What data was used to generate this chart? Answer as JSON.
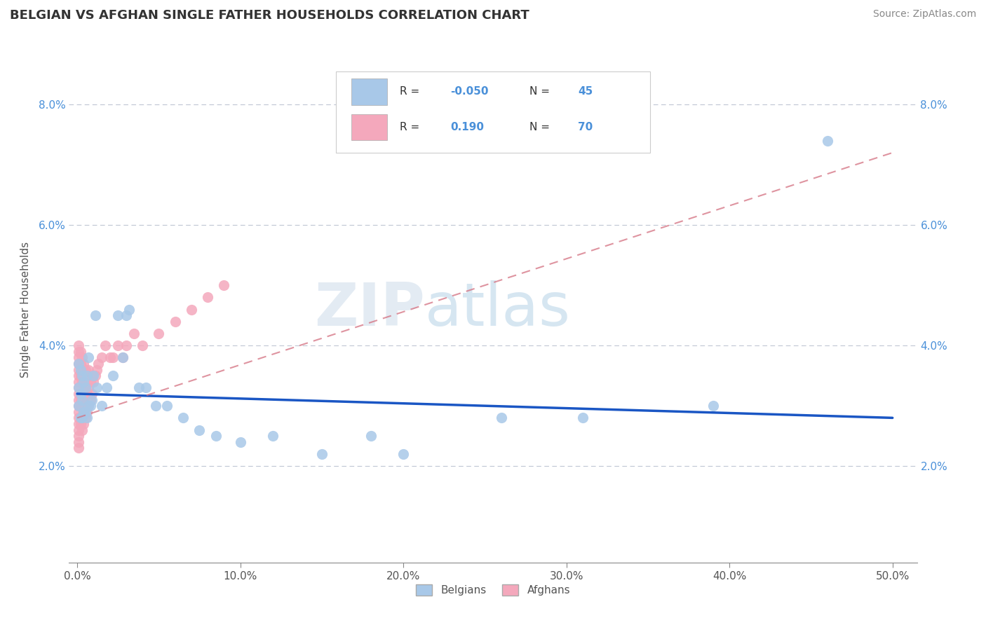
{
  "title": "BELGIAN VS AFGHAN SINGLE FATHER HOUSEHOLDS CORRELATION CHART",
  "source": "Source: ZipAtlas.com",
  "ylabel": "Single Father Households",
  "x_tick_positions": [
    0.0,
    0.1,
    0.2,
    0.3,
    0.4,
    0.5
  ],
  "y_tick_positions": [
    0.02,
    0.04,
    0.06,
    0.08
  ],
  "x_lim": [
    -0.005,
    0.515
  ],
  "y_lim": [
    0.004,
    0.088
  ],
  "belgian_color": "#a8c8e8",
  "afghan_color": "#f4a8bc",
  "belgian_line_color": "#1a56c4",
  "afghan_line_color": "#d47080",
  "belgian_r": -0.05,
  "belgian_n": 45,
  "afghan_r": 0.19,
  "afghan_n": 70,
  "watermark_zip": "ZIP",
  "watermark_atlas": "atlas",
  "legend_belgians": "Belgians",
  "legend_afghans": "Afghans",
  "belgian_scatter_x": [
    0.001,
    0.001,
    0.001,
    0.002,
    0.002,
    0.002,
    0.003,
    0.003,
    0.003,
    0.004,
    0.004,
    0.005,
    0.005,
    0.006,
    0.006,
    0.007,
    0.007,
    0.008,
    0.009,
    0.01,
    0.011,
    0.012,
    0.015,
    0.018,
    0.022,
    0.025,
    0.028,
    0.03,
    0.032,
    0.038,
    0.042,
    0.048,
    0.055,
    0.065,
    0.075,
    0.085,
    0.1,
    0.12,
    0.15,
    0.18,
    0.2,
    0.26,
    0.31,
    0.39,
    0.46
  ],
  "belgian_scatter_y": [
    0.03,
    0.033,
    0.037,
    0.028,
    0.032,
    0.036,
    0.028,
    0.031,
    0.035,
    0.029,
    0.034,
    0.029,
    0.033,
    0.028,
    0.035,
    0.03,
    0.038,
    0.03,
    0.031,
    0.035,
    0.045,
    0.033,
    0.03,
    0.033,
    0.035,
    0.045,
    0.038,
    0.045,
    0.046,
    0.033,
    0.033,
    0.03,
    0.03,
    0.028,
    0.026,
    0.025,
    0.024,
    0.025,
    0.022,
    0.025,
    0.022,
    0.028,
    0.028,
    0.03,
    0.074
  ],
  "afghan_scatter_x": [
    0.001,
    0.001,
    0.001,
    0.001,
    0.001,
    0.001,
    0.001,
    0.001,
    0.001,
    0.001,
    0.001,
    0.001,
    0.001,
    0.001,
    0.001,
    0.001,
    0.001,
    0.001,
    0.002,
    0.002,
    0.002,
    0.002,
    0.002,
    0.002,
    0.002,
    0.002,
    0.003,
    0.003,
    0.003,
    0.003,
    0.003,
    0.003,
    0.003,
    0.004,
    0.004,
    0.004,
    0.004,
    0.004,
    0.005,
    0.005,
    0.005,
    0.005,
    0.006,
    0.006,
    0.006,
    0.007,
    0.007,
    0.007,
    0.008,
    0.008,
    0.009,
    0.009,
    0.01,
    0.011,
    0.012,
    0.013,
    0.015,
    0.017,
    0.02,
    0.022,
    0.025,
    0.028,
    0.03,
    0.035,
    0.04,
    0.05,
    0.06,
    0.07,
    0.08,
    0.09
  ],
  "afghan_scatter_y": [
    0.028,
    0.029,
    0.03,
    0.031,
    0.032,
    0.033,
    0.034,
    0.025,
    0.026,
    0.027,
    0.035,
    0.036,
    0.037,
    0.023,
    0.024,
    0.038,
    0.039,
    0.04,
    0.027,
    0.028,
    0.03,
    0.031,
    0.032,
    0.035,
    0.037,
    0.039,
    0.026,
    0.028,
    0.03,
    0.032,
    0.034,
    0.036,
    0.038,
    0.027,
    0.029,
    0.031,
    0.034,
    0.037,
    0.028,
    0.03,
    0.033,
    0.036,
    0.029,
    0.032,
    0.035,
    0.03,
    0.033,
    0.036,
    0.031,
    0.034,
    0.032,
    0.035,
    0.034,
    0.035,
    0.036,
    0.037,
    0.038,
    0.04,
    0.038,
    0.038,
    0.04,
    0.038,
    0.04,
    0.042,
    0.04,
    0.042,
    0.044,
    0.046,
    0.048,
    0.05
  ],
  "belgian_line_x": [
    0.0,
    0.5
  ],
  "belgian_line_y": [
    0.032,
    0.028
  ],
  "afghan_line_x": [
    0.0,
    0.5
  ],
  "afghan_line_y": [
    0.028,
    0.072
  ]
}
